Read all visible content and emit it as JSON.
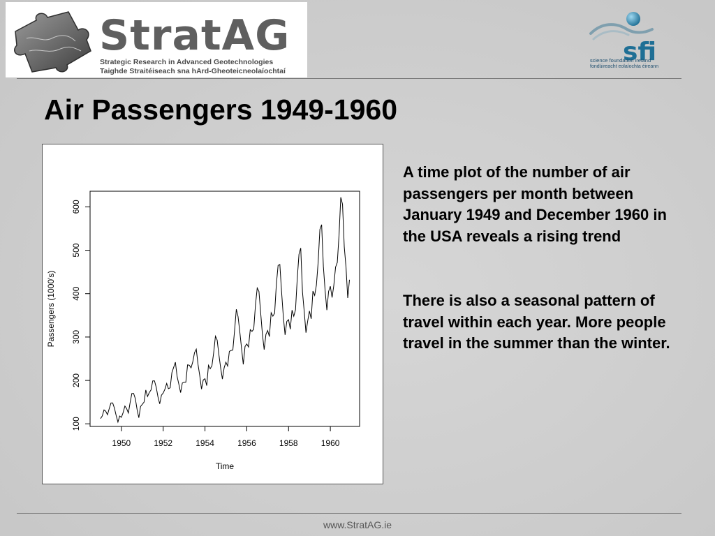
{
  "header": {
    "logo_title": "StratAG",
    "logo_sub1": "Strategic Research in Advanced Geotechnologies",
    "logo_sub2": "Taighde Straitéiseach sna hArd-Gheoteicneolaíochtaí",
    "sfi_mark": "sfi",
    "sfi_line1": "science foundation ireland",
    "sfi_line2": "fondúireacht eolaíochta éireann"
  },
  "slide": {
    "title": "Air Passengers 1949-1960",
    "para1": "A time plot of the number of air passengers per month between January 1949 and December 1960 in the USA reveals a rising trend",
    "para2": "There is also a seasonal pattern of travel within each year. More people travel in the summer than the winter."
  },
  "footer": {
    "url": "www.StratAG.ie"
  },
  "colors": {
    "sfi_blue": "#1f6f95",
    "logo_grey": "#5f5f5f"
  },
  "chart_data": {
    "type": "line",
    "title": "",
    "xlabel": "Time",
    "ylabel": "Passengers (1000's)",
    "xlim": [
      1948.5,
      1961.4
    ],
    "ylim": [
      94,
      636
    ],
    "x_ticks": [
      1950,
      1952,
      1954,
      1956,
      1958,
      1960
    ],
    "y_ticks": [
      100,
      200,
      300,
      400,
      500,
      600
    ],
    "x_start": 1949.0,
    "x_step": 0.08333,
    "series": [
      {
        "values": [
          112,
          118,
          132,
          129,
          121,
          135,
          148,
          148,
          136,
          119,
          104,
          118,
          115,
          126,
          141,
          135,
          125,
          149,
          170,
          170,
          158,
          133,
          114,
          140,
          145,
          150,
          178,
          163,
          172,
          178,
          199,
          199,
          184,
          162,
          146,
          166,
          171,
          180,
          193,
          181,
          183,
          218,
          230,
          242,
          209,
          191,
          172,
          194,
          196,
          196,
          236,
          235,
          229,
          243,
          264,
          272,
          237,
          211,
          180,
          201,
          204,
          188,
          235,
          227,
          234,
          264,
          302,
          293,
          259,
          229,
          203,
          229,
          242,
          233,
          267,
          269,
          270,
          315,
          364,
          347,
          312,
          274,
          237,
          278,
          284,
          277,
          317,
          313,
          318,
          374,
          413,
          405,
          355,
          306,
          271,
          306,
          315,
          301,
          356,
          348,
          355,
          422,
          465,
          467,
          404,
          347,
          305,
          336,
          340,
          318,
          362,
          348,
          363,
          435,
          491,
          505,
          404,
          359,
          310,
          337,
          360,
          342,
          406,
          396,
          420,
          472,
          548,
          559,
          463,
          407,
          362,
          405,
          417,
          391,
          419,
          461,
          472,
          535,
          622,
          606,
          508,
          461,
          390,
          432
        ]
      }
    ],
    "grid": false,
    "legend": "none"
  }
}
